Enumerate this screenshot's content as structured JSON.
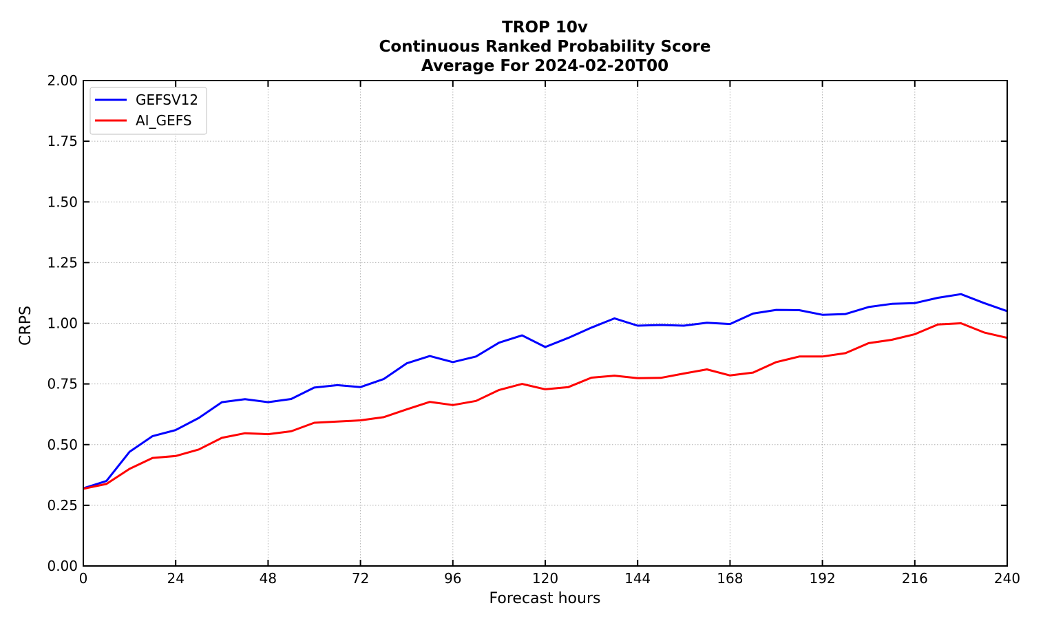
{
  "chart_data": {
    "type": "line",
    "title": "TROP 10v",
    "subtitle": "Continuous Ranked Probability Score",
    "subtitle2": "Average For 2024-02-20T00",
    "xlabel": "Forecast hours",
    "ylabel": "CRPS",
    "xlim": [
      0,
      240
    ],
    "ylim": [
      0,
      2.0
    ],
    "xticks": [
      0,
      24,
      48,
      72,
      96,
      120,
      144,
      168,
      192,
      216,
      240
    ],
    "xtick_labels": [
      "0",
      "24",
      "48",
      "72",
      "96",
      "120",
      "144",
      "168",
      "192",
      "216",
      "240"
    ],
    "yticks": [
      0,
      0.25,
      0.5,
      0.75,
      1.0,
      1.25,
      1.5,
      1.75,
      2.0
    ],
    "ytick_labels": [
      "0.00",
      "0.25",
      "0.50",
      "0.75",
      "1.00",
      "1.25",
      "1.50",
      "1.75",
      "2.00"
    ],
    "grid": true,
    "legend_position": "top-left",
    "x": [
      0,
      6,
      12,
      18,
      24,
      30,
      36,
      42,
      48,
      54,
      60,
      66,
      72,
      78,
      84,
      90,
      96,
      102,
      108,
      114,
      120,
      126,
      132,
      138,
      144,
      150,
      156,
      162,
      168,
      174,
      180,
      186,
      192,
      198,
      204,
      210,
      216,
      222,
      228,
      234,
      240
    ],
    "series": [
      {
        "name": "GEFSV12",
        "color": "#0000ff",
        "values": [
          0.32,
          0.35,
          0.47,
          0.535,
          0.56,
          0.61,
          0.675,
          0.687,
          0.675,
          0.688,
          0.735,
          0.745,
          0.737,
          0.77,
          0.835,
          0.865,
          0.84,
          0.863,
          0.92,
          0.95,
          0.902,
          0.94,
          0.982,
          1.02,
          0.99,
          0.993,
          0.99,
          1.002,
          0.997,
          1.04,
          1.055,
          1.054,
          1.035,
          1.038,
          1.067,
          1.08,
          1.083,
          1.105,
          1.12,
          1.083,
          1.05
        ]
      },
      {
        "name": "AI_GEFS",
        "color": "#ff0000",
        "values": [
          0.318,
          0.338,
          0.4,
          0.445,
          0.453,
          0.48,
          0.528,
          0.547,
          0.543,
          0.555,
          0.59,
          0.595,
          0.6,
          0.613,
          0.645,
          0.676,
          0.663,
          0.68,
          0.725,
          0.75,
          0.728,
          0.737,
          0.776,
          0.784,
          0.774,
          0.775,
          0.793,
          0.81,
          0.785,
          0.797,
          0.84,
          0.863,
          0.863,
          0.877,
          0.918,
          0.932,
          0.955,
          0.995,
          1.0,
          0.962,
          0.94
        ]
      }
    ]
  }
}
